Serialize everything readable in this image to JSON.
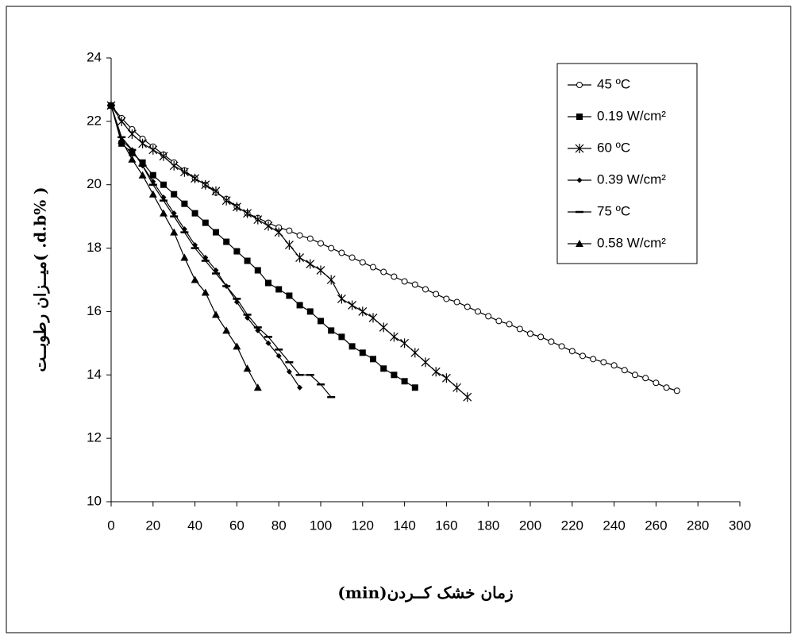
{
  "chart_data": {
    "type": "line",
    "xlabel": "زمان خشک کــردن(min)",
    "ylabel": "( %d.b. )میــزان رطوبــت",
    "xlim": [
      0,
      300
    ],
    "xticks": [
      0,
      20,
      40,
      60,
      80,
      100,
      120,
      140,
      160,
      180,
      200,
      220,
      240,
      260,
      280,
      300
    ],
    "ylim": [
      10,
      24
    ],
    "yticks": [
      10,
      12,
      14,
      16,
      18,
      20,
      22,
      24
    ],
    "grid": false,
    "legend": "upper right",
    "series": [
      {
        "name": "45 ºC",
        "color": "#000000",
        "x": [
          0,
          5,
          10,
          15,
          20,
          25,
          30,
          35,
          40,
          45,
          50,
          55,
          60,
          65,
          70,
          75,
          80,
          85,
          90,
          95,
          100,
          105,
          110,
          115,
          120,
          125,
          130,
          135,
          140,
          145,
          150,
          155,
          160,
          165,
          170,
          175,
          180,
          185,
          190,
          195,
          200,
          205,
          210,
          215,
          220,
          225,
          230,
          235,
          240,
          245,
          250,
          255,
          260,
          265,
          270
        ],
        "values": [
          22.5,
          22.1,
          21.75,
          21.45,
          21.2,
          20.95,
          20.7,
          20.45,
          20.2,
          20.0,
          19.75,
          19.55,
          19.3,
          19.1,
          18.95,
          18.8,
          18.65,
          18.55,
          18.4,
          18.3,
          18.15,
          18.0,
          17.85,
          17.7,
          17.55,
          17.4,
          17.25,
          17.1,
          16.95,
          16.85,
          16.7,
          16.55,
          16.4,
          16.3,
          16.15,
          16.0,
          15.85,
          15.7,
          15.6,
          15.45,
          15.3,
          15.2,
          15.05,
          14.9,
          14.75,
          14.6,
          14.5,
          14.4,
          14.3,
          14.15,
          14.0,
          13.9,
          13.75,
          13.6,
          13.5
        ]
      },
      {
        "name": "0.19 W/cm²",
        "color": "#000000",
        "x": [
          0,
          5,
          10,
          15,
          20,
          25,
          30,
          35,
          40,
          45,
          50,
          55,
          60,
          65,
          70,
          75,
          80,
          85,
          90,
          95,
          100,
          105,
          110,
          115,
          120,
          125,
          130,
          135,
          140,
          145
        ],
        "values": [
          22.5,
          21.3,
          21.0,
          20.7,
          20.3,
          20.0,
          19.7,
          19.4,
          19.1,
          18.8,
          18.5,
          18.2,
          17.9,
          17.6,
          17.3,
          16.9,
          16.7,
          16.5,
          16.2,
          16.0,
          15.7,
          15.4,
          15.2,
          14.9,
          14.7,
          14.5,
          14.2,
          14.0,
          13.8,
          13.6
        ]
      },
      {
        "name": "60 ºC",
        "color": "#000000",
        "x": [
          0,
          5,
          10,
          15,
          20,
          25,
          30,
          35,
          40,
          45,
          50,
          55,
          60,
          65,
          70,
          75,
          80,
          85,
          90,
          95,
          100,
          105,
          110,
          115,
          120,
          125,
          130,
          135,
          140,
          145,
          150,
          155,
          160,
          165,
          170
        ],
        "values": [
          22.5,
          22.0,
          21.6,
          21.3,
          21.1,
          20.9,
          20.6,
          20.4,
          20.2,
          20.0,
          19.8,
          19.5,
          19.3,
          19.1,
          18.9,
          18.7,
          18.5,
          18.1,
          17.7,
          17.5,
          17.3,
          17.0,
          16.4,
          16.2,
          16.0,
          15.8,
          15.5,
          15.2,
          15.0,
          14.7,
          14.4,
          14.1,
          13.9,
          13.6,
          13.3
        ]
      },
      {
        "name": "0.39 W/cm²",
        "color": "#000000",
        "x": [
          0,
          5,
          10,
          15,
          20,
          25,
          30,
          35,
          40,
          45,
          50,
          55,
          60,
          65,
          70,
          75,
          80,
          85,
          90
        ],
        "values": [
          22.5,
          21.4,
          21.1,
          20.6,
          20.1,
          19.6,
          19.1,
          18.6,
          18.1,
          17.7,
          17.3,
          16.8,
          16.3,
          15.8,
          15.4,
          15.0,
          14.6,
          14.1,
          13.6
        ]
      },
      {
        "name": "75 ºC",
        "color": "#000000",
        "x": [
          0,
          5,
          10,
          15,
          20,
          25,
          30,
          35,
          40,
          45,
          50,
          55,
          60,
          65,
          70,
          75,
          80,
          85,
          90,
          95,
          100,
          105
        ],
        "values": [
          22.5,
          21.5,
          21.1,
          20.6,
          20.0,
          19.5,
          19.0,
          18.5,
          18.0,
          17.6,
          17.2,
          16.8,
          16.4,
          15.9,
          15.5,
          15.2,
          14.8,
          14.4,
          14.0,
          14.0,
          13.7,
          13.3
        ]
      },
      {
        "name": "0.58 W/cm²",
        "color": "#000000",
        "x": [
          0,
          5,
          10,
          15,
          20,
          25,
          30,
          35,
          40,
          45,
          50,
          55,
          60,
          65,
          70
        ],
        "values": [
          22.5,
          21.4,
          20.8,
          20.3,
          19.7,
          19.1,
          18.5,
          17.7,
          17.0,
          16.6,
          15.9,
          15.4,
          14.9,
          14.2,
          13.6
        ]
      }
    ]
  }
}
